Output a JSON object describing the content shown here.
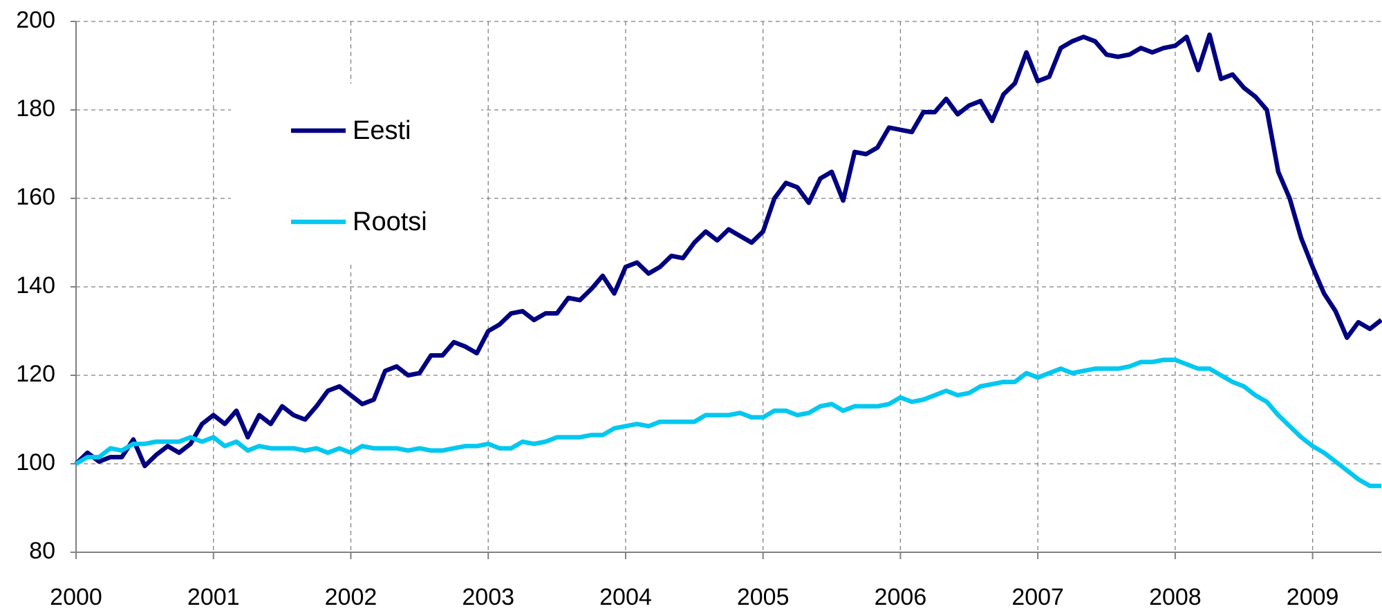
{
  "chart_data": {
    "type": "line",
    "x": [
      2000,
      2000.083,
      2000.167,
      2000.25,
      2000.333,
      2000.417,
      2000.5,
      2000.583,
      2000.667,
      2000.75,
      2000.833,
      2000.917,
      2001,
      2001.083,
      2001.167,
      2001.25,
      2001.333,
      2001.417,
      2001.5,
      2001.583,
      2001.667,
      2001.75,
      2001.833,
      2001.917,
      2002,
      2002.083,
      2002.167,
      2002.25,
      2002.333,
      2002.417,
      2002.5,
      2002.583,
      2002.667,
      2002.75,
      2002.833,
      2002.917,
      2003,
      2003.083,
      2003.167,
      2003.25,
      2003.333,
      2003.417,
      2003.5,
      2003.583,
      2003.667,
      2003.75,
      2003.833,
      2003.917,
      2004,
      2004.083,
      2004.167,
      2004.25,
      2004.333,
      2004.417,
      2004.5,
      2004.583,
      2004.667,
      2004.75,
      2004.833,
      2004.917,
      2005,
      2005.083,
      2005.167,
      2005.25,
      2005.333,
      2005.417,
      2005.5,
      2005.583,
      2005.667,
      2005.75,
      2005.833,
      2005.917,
      2006,
      2006.083,
      2006.167,
      2006.25,
      2006.333,
      2006.417,
      2006.5,
      2006.583,
      2006.667,
      2006.75,
      2006.833,
      2006.917,
      2007,
      2007.083,
      2007.167,
      2007.25,
      2007.333,
      2007.417,
      2007.5,
      2007.583,
      2007.667,
      2007.75,
      2007.833,
      2007.917,
      2008,
      2008.083,
      2008.167,
      2008.25,
      2008.333,
      2008.417,
      2008.5,
      2008.583,
      2008.667,
      2008.75,
      2008.833,
      2008.917,
      2009,
      2009.083,
      2009.167,
      2009.25,
      2009.333,
      2009.417,
      2009.5
    ],
    "series": [
      {
        "name": "Eesti",
        "color": "#000080",
        "values": [
          100,
          102.5,
          100.5,
          101.5,
          101.5,
          105.5,
          99.5,
          102,
          104,
          102.5,
          104.5,
          109,
          111,
          109,
          112,
          106,
          111,
          109,
          113,
          111,
          110,
          113,
          116.5,
          117.5,
          115.5,
          113.5,
          114.5,
          121,
          122,
          120,
          120.5,
          124.5,
          124.5,
          127.5,
          126.5,
          125,
          130,
          131.5,
          134,
          134.5,
          132.5,
          134,
          134,
          137.5,
          137,
          139.5,
          142.5,
          138.5,
          144.5,
          145.5,
          143,
          144.5,
          147,
          146.5,
          150,
          152.5,
          150.5,
          153,
          151.5,
          150,
          152.5,
          160,
          163.5,
          162.5,
          159,
          164.5,
          166,
          159.5,
          170.5,
          170,
          171.5,
          176,
          175.5,
          175,
          179.5,
          179.5,
          182.5,
          179,
          181,
          182,
          177.5,
          183.5,
          186,
          193,
          186.5,
          187.5,
          194,
          195.5,
          196.5,
          195.5,
          192.5,
          192,
          192.5,
          194,
          193,
          194,
          194.5,
          196.5,
          189,
          197,
          187,
          188,
          185,
          183,
          180,
          166,
          160,
          151,
          144.5,
          138.5,
          134.5,
          128.5,
          132,
          130.5,
          132.5
        ]
      },
      {
        "name": "Rootsi",
        "color": "#00c8f0",
        "values": [
          100,
          101.5,
          101.5,
          103.5,
          103,
          104.5,
          104.5,
          105,
          105,
          105,
          106,
          105,
          106,
          104,
          105,
          103,
          104,
          103.5,
          103.5,
          103.5,
          103,
          103.5,
          102.5,
          103.5,
          102.5,
          104,
          103.5,
          103.5,
          103.5,
          103,
          103.5,
          103,
          103,
          103.5,
          104,
          104,
          104.5,
          103.5,
          103.5,
          105,
          104.5,
          105,
          106,
          106,
          106,
          106.5,
          106.5,
          108,
          108.5,
          109,
          108.5,
          109.5,
          109.5,
          109.5,
          109.5,
          111,
          111,
          111,
          111.5,
          110.5,
          110.5,
          112,
          112,
          111,
          111.5,
          113,
          113.5,
          112,
          113,
          113,
          113,
          113.5,
          115,
          114,
          114.5,
          115.5,
          116.5,
          115.5,
          116,
          117.5,
          118,
          118.5,
          118.5,
          120.5,
          119.5,
          120.5,
          121.5,
          120.5,
          121,
          121.5,
          121.5,
          121.5,
          122,
          123,
          123,
          123.5,
          123.5,
          122.5,
          121.5,
          121.5,
          120,
          118.5,
          117.5,
          115.5,
          114,
          111,
          108.5,
          106,
          104,
          102.5,
          100.5,
          98.5,
          96.5,
          95,
          95
        ]
      }
    ],
    "xlim": [
      2000,
      2009.5
    ],
    "xticks": [
      2000,
      2001,
      2002,
      2003,
      2004,
      2005,
      2006,
      2007,
      2008,
      2009
    ],
    "ylim": [
      80,
      200
    ],
    "yticks": [
      80,
      100,
      120,
      140,
      160,
      180,
      200
    ],
    "grid": true,
    "legend": "upper left"
  }
}
